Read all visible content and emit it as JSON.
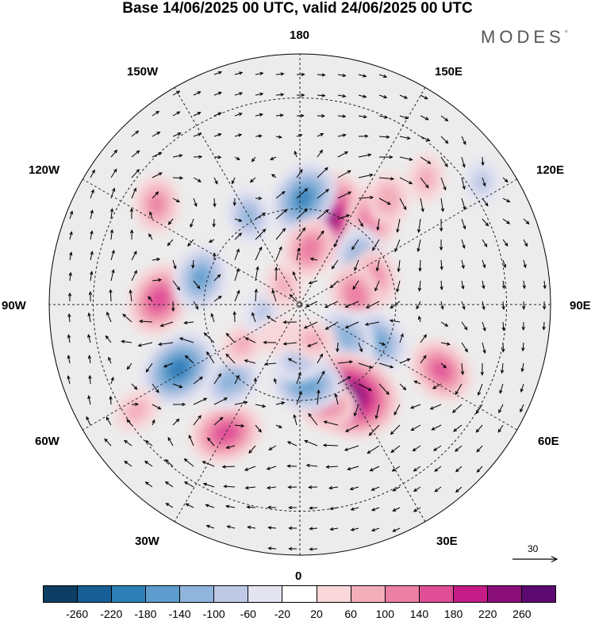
{
  "title": "Base 14/06/2025 00 UTC, valid 24/06/2025 00 UTC",
  "brand": "MODES",
  "brand_mark": "°",
  "longitude_labels": {
    "lon_180": "180",
    "lon_150e": "150E",
    "lon_120e": "120E",
    "lon_90e": "90E",
    "lon_60e": "60E",
    "lon_30e": "30E",
    "lon_0": "0",
    "lon_30w": "30W",
    "lon_60w": "60W",
    "lon_90w": "90W",
    "lon_120w": "120W",
    "lon_150w": "150W"
  },
  "reference_vector": {
    "label": "30"
  },
  "colorbar": {
    "ticks": [
      "-260",
      "-220",
      "-180",
      "-140",
      "-100",
      "-60",
      "-20",
      "20",
      "60",
      "100",
      "140",
      "180",
      "220",
      "260"
    ],
    "colors": [
      "#0d3e63",
      "#175f94",
      "#2e7fb8",
      "#5d9ccc",
      "#8fb5dc",
      "#bfc9e6",
      "#e4e4f1",
      "#ffffff",
      "#f8d6d9",
      "#f3aebb",
      "#ec7fa4",
      "#e04e96",
      "#c31c86",
      "#8a0f78",
      "#5c0a6f"
    ]
  },
  "map": {
    "projection": "north polar stereographic",
    "background_color": "#ececec",
    "anomalies": [
      {
        "lon": 162,
        "lat": 62,
        "value": 250
      },
      {
        "lon": 178,
        "lat": 57,
        "value": -180
      },
      {
        "lon": 170,
        "lat": 72,
        "value": 120
      },
      {
        "lon": 140,
        "lat": 55,
        "value": 130
      },
      {
        "lon": 128,
        "lat": 66,
        "value": -120
      },
      {
        "lon": 110,
        "lat": 65,
        "value": 100
      },
      {
        "lon": 100,
        "lat": 72,
        "value": 120
      },
      {
        "lon": 135,
        "lat": 37,
        "value": 60
      },
      {
        "lon": 124,
        "lat": 27,
        "value": -60
      },
      {
        "lon": 140,
        "lat": 48,
        "value": 80
      },
      {
        "lon": 65,
        "lat": 43,
        "value": 140
      },
      {
        "lon": 65,
        "lat": 63,
        "value": -140
      },
      {
        "lon": 55,
        "lat": 72,
        "value": -120
      },
      {
        "lon": 28,
        "lat": 58,
        "value": 280
      },
      {
        "lon": 15,
        "lat": 58,
        "value": 120
      },
      {
        "lon": 5,
        "lat": 65,
        "value": -160
      },
      {
        "lon": -2,
        "lat": 72,
        "value": -80
      },
      {
        "lon": -30,
        "lat": 45,
        "value": 160
      },
      {
        "lon": -42,
        "lat": 58,
        "value": -120
      },
      {
        "lon": -55,
        "lat": 68,
        "value": 60
      },
      {
        "lon": -62,
        "lat": 48,
        "value": -200
      },
      {
        "lon": -57,
        "lat": 33,
        "value": 60
      },
      {
        "lon": -92,
        "lat": 47,
        "value": 160
      },
      {
        "lon": -105,
        "lat": 58,
        "value": -140
      },
      {
        "lon": -125,
        "lat": 38,
        "value": 100
      },
      {
        "lon": -150,
        "lat": 58,
        "value": -100
      },
      {
        "lon": -80,
        "lat": 78,
        "value": -60
      },
      {
        "lon": -35,
        "lat": 78,
        "value": 40
      },
      {
        "lon": 20,
        "lat": 78,
        "value": 60
      },
      {
        "lon": -140,
        "lat": 82,
        "value": 60
      }
    ]
  }
}
